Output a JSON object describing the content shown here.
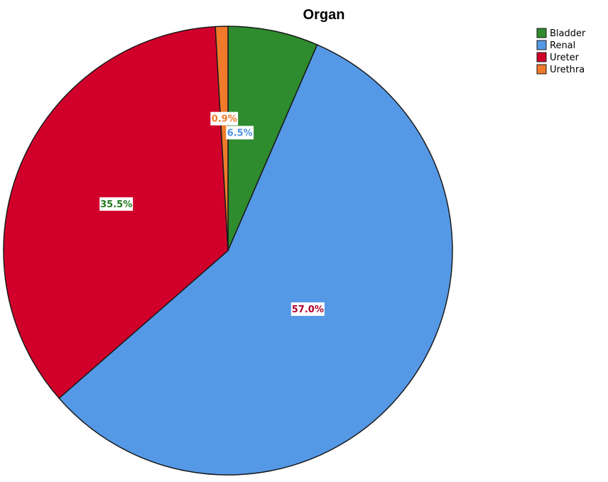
{
  "chart_data": {
    "type": "pie",
    "title": "Organ",
    "legend_position": "top-right",
    "start_angle_deg": 0,
    "direction": "clockwise",
    "slices": [
      {
        "label": "Bladder",
        "value": 6.5,
        "display": "6.5%",
        "color": "#2e8b2e",
        "label_color": "#4a90e2"
      },
      {
        "label": "Renal",
        "value": 57.0,
        "display": "57.0%",
        "color": "#5599e6",
        "label_color": "#b0002a"
      },
      {
        "label": "Ureter",
        "value": 35.5,
        "display": "35.5%",
        "color": "#d1002a",
        "label_color": "#1f7a1f"
      },
      {
        "label": "Urethra",
        "value": 0.9,
        "display": "0.9%",
        "color": "#f07a2a",
        "label_color": "#f07a2a"
      }
    ]
  }
}
